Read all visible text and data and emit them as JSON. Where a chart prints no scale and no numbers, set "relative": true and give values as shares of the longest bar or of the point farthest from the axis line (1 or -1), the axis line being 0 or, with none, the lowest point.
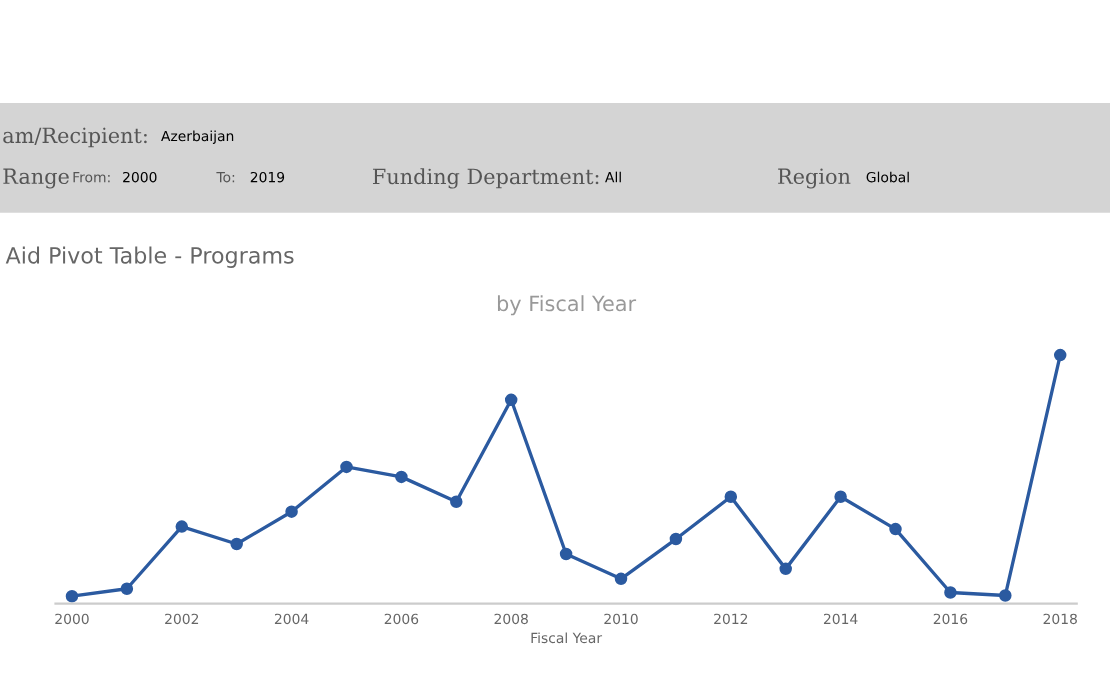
{
  "chart_data": {
    "type": "line",
    "title": "Aid Pivot Table - Programs",
    "subtitle": "by Fiscal Year",
    "xlabel": "Fiscal Year",
    "annotations": [
      "am/Recipient:",
      "Azerbaijan",
      "Range",
      "From:",
      "2000",
      "To:",
      "2019",
      "Funding Department:",
      "All",
      "Region",
      "Global"
    ],
    "categories": [
      "2000",
      null,
      "2002",
      null,
      "2004",
      null,
      "2006",
      null,
      "2008",
      null,
      "2010",
      null,
      "2012",
      null,
      "2014",
      null,
      "2016",
      null,
      "2018"
    ],
    "relative": true,
    "marker": "circle",
    "line_style": "solid",
    "series": [
      {
        "color": "#2b5aa0",
        "values": [
          0.03,
          0.06,
          0.31,
          0.24,
          0.37,
          0.55,
          0.51,
          0.41,
          0.82,
          0.2,
          0.1,
          0.26,
          0.43,
          0.14,
          0.43,
          0.3,
          0.045,
          0.033,
          1
        ]
      }
    ]
  }
}
